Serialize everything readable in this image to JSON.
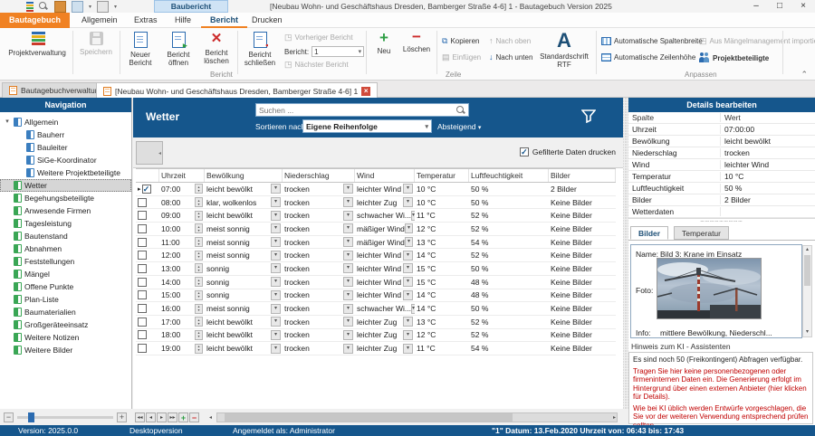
{
  "window": {
    "quick_tab": "Baubericht",
    "title": "[Neubau Wohn- und Geschäftshaus Dresden, Bamberger Straße 4-6] 1 - Bautagebuch Version 2025",
    "controls": {
      "minimize": "–",
      "maximize": "□",
      "close": "×"
    }
  },
  "menu": {
    "items": [
      "Bautagebuch",
      "Allgemein",
      "Extras",
      "Hilfe",
      "Bericht",
      "Drucken"
    ],
    "active": "Bericht"
  },
  "ribbon": {
    "projektverwaltung": "Projektverwaltung",
    "speichern": "Speichern",
    "neuer_bericht": "Neuer Bericht",
    "bericht_oeffnen": "Bericht öffnen",
    "bericht_loeschen": "Bericht löschen",
    "bericht_schliessen": "Bericht schließen",
    "vorheriger_bericht": "Vorheriger Bericht",
    "bericht_label": "Bericht:",
    "bericht_value": "1",
    "naechster_bericht": "Nächster Bericht",
    "neu": "Neu",
    "loeschen": "Löschen",
    "kopieren": "Kopieren",
    "einfuegen": "Einfügen",
    "nach_oben": "Nach oben",
    "nach_unten": "Nach unten",
    "standardschrift_line1": "Standardschrift",
    "standardschrift_line2": "RTF",
    "auto_spaltenbreite": "Automatische Spaltenbreite",
    "auto_zeilenhoehe": "Automatische Zeilenhöhe",
    "aus_maengel": "Aus Mängelmanagement importieren",
    "projektbeteiligte": "Projektbeteiligte",
    "groups": {
      "bericht": "Bericht",
      "zeile": "Zeile",
      "anpassen": "Anpassen"
    }
  },
  "doc_tabs": [
    {
      "label": "Bautagebuchverwaltung",
      "active": false,
      "closable": false
    },
    {
      "label": "[Neubau Wohn- und Geschäftshaus Dresden, Bamberger Straße 4-6] 1",
      "active": true,
      "closable": true
    }
  ],
  "navigation": {
    "title": "Navigation",
    "items": [
      {
        "label": "Allgemein",
        "icon": "blue",
        "level": 0,
        "expanded": true
      },
      {
        "label": "Bauherr",
        "icon": "blue",
        "level": 1
      },
      {
        "label": "Bauleiter",
        "icon": "blue",
        "level": 1
      },
      {
        "label": "SiGe-Koordinator",
        "icon": "blue",
        "level": 1
      },
      {
        "label": "Weitere Projektbeteiligte",
        "icon": "blue",
        "level": 1
      },
      {
        "label": "Wetter",
        "icon": "green",
        "level": 0,
        "selected": true
      },
      {
        "label": "Begehungsbeteiligte",
        "icon": "green",
        "level": 0
      },
      {
        "label": "Anwesende Firmen",
        "icon": "green",
        "level": 0
      },
      {
        "label": "Tagesleistung",
        "icon": "green",
        "level": 0
      },
      {
        "label": "Bautenstand",
        "icon": "green",
        "level": 0
      },
      {
        "label": "Abnahmen",
        "icon": "green",
        "level": 0
      },
      {
        "label": "Feststellungen",
        "icon": "green",
        "level": 0
      },
      {
        "label": "Mängel",
        "icon": "green",
        "level": 0
      },
      {
        "label": "Offene Punkte",
        "icon": "green",
        "level": 0
      },
      {
        "label": "Plan-Liste",
        "icon": "green",
        "level": 0
      },
      {
        "label": "Baumaterialien",
        "icon": "green",
        "level": 0
      },
      {
        "label": "Großgeräteeinsatz",
        "icon": "green",
        "level": 0
      },
      {
        "label": "Weitere Notizen",
        "icon": "green",
        "level": 0
      },
      {
        "label": "Weitere Bilder",
        "icon": "green",
        "level": 0
      }
    ]
  },
  "main": {
    "title": "Wetter",
    "search_placeholder": "Suchen ...",
    "sort_label": "Sortieren nach",
    "sort_value": "Eigene Reihenfolge",
    "sort_direction": "Absteigend",
    "filter_print_label": "Gefilterte Daten drucken",
    "filter_print_checked": true,
    "table": {
      "columns": [
        "Uhrzeit",
        "Bewölkung",
        "Niederschlag",
        "Wind",
        "Temperatur",
        "Luftfeuchtigkeit",
        "Bilder"
      ],
      "rows": [
        {
          "checked": true,
          "uhrzeit": "07:00",
          "bewoelkung": "leicht bewölkt",
          "niederschlag": "trocken",
          "wind": "leichter Wind",
          "temperatur": "10 °C",
          "luftfeuchtigkeit": "50 %",
          "bilder": "2 Bilder"
        },
        {
          "checked": false,
          "uhrzeit": "08:00",
          "bewoelkung": "klar, wolkenlos",
          "niederschlag": "trocken",
          "wind": "leichter Zug",
          "temperatur": "10 °C",
          "luftfeuchtigkeit": "50 %",
          "bilder": "Keine Bilder"
        },
        {
          "checked": false,
          "uhrzeit": "09:00",
          "bewoelkung": "leicht bewölkt",
          "niederschlag": "trocken",
          "wind": "schwacher Wi...",
          "temperatur": "11 °C",
          "luftfeuchtigkeit": "52 %",
          "bilder": "Keine Bilder"
        },
        {
          "checked": false,
          "uhrzeit": "10:00",
          "bewoelkung": "meist sonnig",
          "niederschlag": "trocken",
          "wind": "mäßiger Wind",
          "temperatur": "12 °C",
          "luftfeuchtigkeit": "52 %",
          "bilder": "Keine Bilder"
        },
        {
          "checked": false,
          "uhrzeit": "11:00",
          "bewoelkung": "meist sonnig",
          "niederschlag": "trocken",
          "wind": "mäßiger Wind",
          "temperatur": "13 °C",
          "luftfeuchtigkeit": "54 %",
          "bilder": "Keine Bilder"
        },
        {
          "checked": false,
          "uhrzeit": "12:00",
          "bewoelkung": "meist sonnig",
          "niederschlag": "trocken",
          "wind": "leichter Wind",
          "temperatur": "14 °C",
          "luftfeuchtigkeit": "52 %",
          "bilder": "Keine Bilder"
        },
        {
          "checked": false,
          "uhrzeit": "13:00",
          "bewoelkung": "sonnig",
          "niederschlag": "trocken",
          "wind": "leichter Wind",
          "temperatur": "15 °C",
          "luftfeuchtigkeit": "50 %",
          "bilder": "Keine Bilder"
        },
        {
          "checked": false,
          "uhrzeit": "14:00",
          "bewoelkung": "sonnig",
          "niederschlag": "trocken",
          "wind": "leichter Wind",
          "temperatur": "15 °C",
          "luftfeuchtigkeit": "48 %",
          "bilder": "Keine Bilder"
        },
        {
          "checked": false,
          "uhrzeit": "15:00",
          "bewoelkung": "sonnig",
          "niederschlag": "trocken",
          "wind": "leichter Wind",
          "temperatur": "14 °C",
          "luftfeuchtigkeit": "48 %",
          "bilder": "Keine Bilder"
        },
        {
          "checked": false,
          "uhrzeit": "16:00",
          "bewoelkung": "meist sonnig",
          "niederschlag": "trocken",
          "wind": "schwacher Wi...",
          "temperatur": "14 °C",
          "luftfeuchtigkeit": "50 %",
          "bilder": "Keine Bilder"
        },
        {
          "checked": false,
          "uhrzeit": "17:00",
          "bewoelkung": "leicht bewölkt",
          "niederschlag": "trocken",
          "wind": "leichter Zug",
          "temperatur": "13 °C",
          "luftfeuchtigkeit": "52 %",
          "bilder": "Keine Bilder"
        },
        {
          "checked": false,
          "uhrzeit": "18:00",
          "bewoelkung": "leicht bewölkt",
          "niederschlag": "trocken",
          "wind": "leichter Zug",
          "temperatur": "12 °C",
          "luftfeuchtigkeit": "52 %",
          "bilder": "Keine Bilder"
        },
        {
          "checked": false,
          "uhrzeit": "19:00",
          "bewoelkung": "leicht bewölkt",
          "niederschlag": "trocken",
          "wind": "leichter Zug",
          "temperatur": "11 °C",
          "luftfeuchtigkeit": "54 %",
          "bilder": "Keine Bilder"
        }
      ]
    }
  },
  "details": {
    "title": "Details bearbeiten",
    "header": [
      "Spalte",
      "Wert"
    ],
    "rows": [
      [
        "Uhrzeit",
        "07:00:00"
      ],
      [
        "Bewölkung",
        "leicht bewölkt"
      ],
      [
        "Niederschlag",
        "trocken"
      ],
      [
        "Wind",
        "leichter Wind"
      ],
      [
        "Temperatur",
        "10 °C"
      ],
      [
        "Luftfeuchtigkeit",
        "50 %"
      ],
      [
        "Bilder",
        "2 Bilder"
      ],
      [
        "Wetterdaten",
        ""
      ]
    ],
    "tabs": [
      "Bilder",
      "Temperatur"
    ],
    "active_tab": "Bilder",
    "toolbar_icons": [
      "add-image-icon",
      "cut-image-icon",
      "delete-image-icon",
      "layout-icon",
      "preview-image-icon",
      "effects-icon",
      "move-up-icon",
      "move-down-icon",
      "rotate-icon",
      "copy-icon",
      "paste-icon",
      "export-icon"
    ],
    "image": {
      "name_label": "Name:",
      "name": "Bild 3: Krane im Einsatz",
      "photo_label": "Foto:",
      "info_label": "Info:",
      "info": "mittlere Bewölkung, Niederschl..."
    },
    "ki": {
      "title": "Hinweis zum KI - Assistenten",
      "quota": "Es sind noch 50 (Freikontingent) Abfragen verfügbar.",
      "warning1": "Tragen Sie hier keine personenbezogenen oder firmeninternen Daten ein. Die Generierung erfolgt im Hintergrund über einen externen Anbieter (hier klicken für Details).",
      "warning2": "Wie bei KI üblich werden Entwürfe vorgeschlagen, die Sie vor der weiteren Verwendung entsprechend prüfen sollten."
    }
  },
  "statusbar": {
    "version": "Version: 2025.0.0",
    "edition": "Desktopversion",
    "user": "Angemeldet als: Administrator",
    "report_info": "\"1\" Datum: 13.Feb.2020 Uhrzeit von: 06:43 bis: 17:43"
  },
  "colors": {
    "accent_blue": "#15568c",
    "orange": "#f08122",
    "ribbon_blue": "#1d4f76",
    "green": "#2e9e44",
    "red": "#cc2a2a"
  }
}
